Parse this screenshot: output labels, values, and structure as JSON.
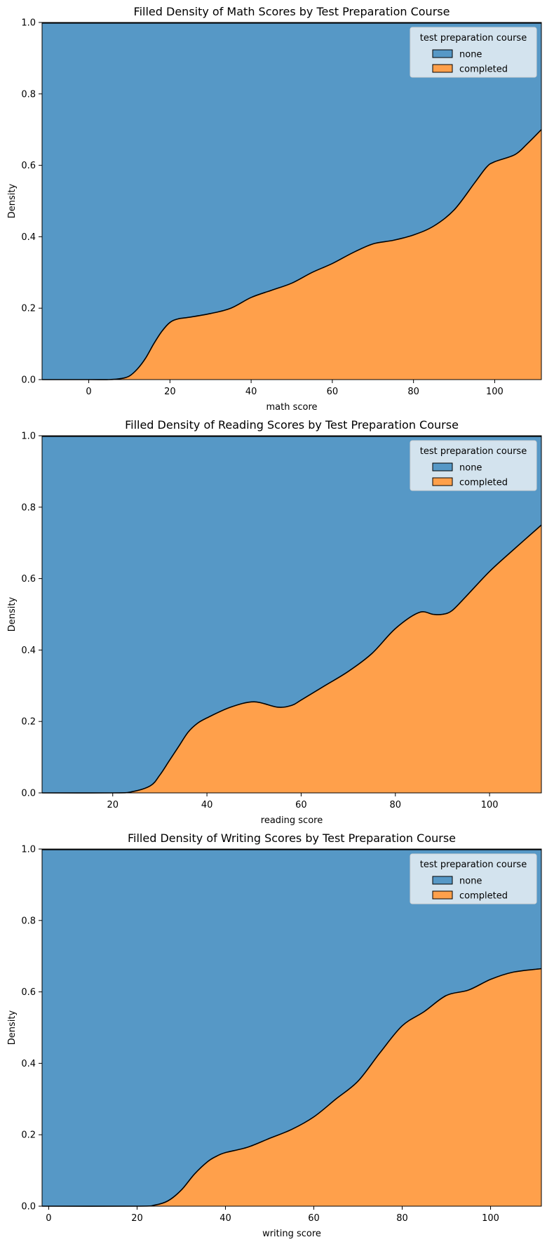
{
  "colors": {
    "none": "#5698c6",
    "completed": "#ffa04b",
    "legend_bg": "#dde9f1",
    "legend_border": "#d4d4d4"
  },
  "legend": {
    "title": "test preparation course",
    "placement": "upper right"
  },
  "chart_data": [
    {
      "type": "area",
      "stacked": "fill",
      "title": "Filled Density of Math Scores by Test Preparation Course",
      "xlabel": "math score",
      "ylabel": "Density",
      "xlim": [
        -11.5,
        111.5
      ],
      "ylim": [
        0,
        1
      ],
      "xticks": [
        0,
        20,
        40,
        60,
        80,
        100
      ],
      "yticks": [
        0.0,
        0.2,
        0.4,
        0.6,
        0.8,
        1.0
      ],
      "series": [
        {
          "name": "none",
          "role": "top"
        },
        {
          "name": "completed",
          "role": "bottom"
        }
      ],
      "x": [
        -11.5,
        0,
        5,
        8,
        10,
        12,
        14,
        16,
        18,
        20,
        22,
        25,
        30,
        35,
        40,
        45,
        50,
        55,
        60,
        65,
        70,
        75,
        80,
        85,
        90,
        95,
        98,
        100,
        105,
        108,
        111.5
      ],
      "completed_fraction": [
        0,
        0,
        0,
        0.003,
        0.01,
        0.03,
        0.06,
        0.1,
        0.135,
        0.16,
        0.17,
        0.175,
        0.185,
        0.2,
        0.23,
        0.25,
        0.27,
        0.3,
        0.325,
        0.355,
        0.38,
        0.39,
        0.405,
        0.43,
        0.475,
        0.55,
        0.595,
        0.61,
        0.63,
        0.66,
        0.7
      ]
    },
    {
      "type": "area",
      "stacked": "fill",
      "title": "Filled Density of Reading Scores by Test Preparation Course",
      "xlabel": "reading score",
      "ylabel": "Density",
      "xlim": [
        5,
        111
      ],
      "ylim": [
        0,
        1
      ],
      "xticks": [
        20,
        40,
        60,
        80,
        100
      ],
      "yticks": [
        0.0,
        0.2,
        0.4,
        0.6,
        0.8,
        1.0
      ],
      "series": [
        {
          "name": "none",
          "role": "top"
        },
        {
          "name": "completed",
          "role": "bottom"
        }
      ],
      "x": [
        5,
        20,
        24,
        28,
        30,
        32,
        34,
        36,
        38,
        40,
        45,
        50,
        55,
        58,
        60,
        65,
        70,
        75,
        80,
        85,
        88,
        90,
        92,
        95,
        100,
        105,
        111
      ],
      "completed_fraction": [
        0,
        0,
        0.003,
        0.02,
        0.05,
        0.09,
        0.13,
        0.17,
        0.195,
        0.21,
        0.24,
        0.255,
        0.24,
        0.245,
        0.26,
        0.3,
        0.34,
        0.39,
        0.46,
        0.505,
        0.5,
        0.5,
        0.51,
        0.55,
        0.62,
        0.68,
        0.75
      ]
    },
    {
      "type": "area",
      "stacked": "fill",
      "title": "Filled Density of Writing Scores by Test Preparation Course",
      "xlabel": "writing score",
      "ylabel": "Density",
      "xlim": [
        -1.5,
        111.5
      ],
      "ylim": [
        0,
        1
      ],
      "xticks": [
        0,
        20,
        40,
        60,
        80,
        100
      ],
      "yticks": [
        0.0,
        0.2,
        0.4,
        0.6,
        0.8,
        1.0
      ],
      "series": [
        {
          "name": "none",
          "role": "top"
        },
        {
          "name": "completed",
          "role": "bottom"
        }
      ],
      "x": [
        -1.5,
        20,
        24,
        27,
        30,
        33,
        36,
        38,
        40,
        45,
        50,
        55,
        60,
        65,
        70,
        75,
        80,
        85,
        90,
        95,
        100,
        105,
        111.5
      ],
      "completed_fraction": [
        0,
        0,
        0.003,
        0.015,
        0.045,
        0.09,
        0.125,
        0.14,
        0.15,
        0.165,
        0.19,
        0.215,
        0.25,
        0.3,
        0.35,
        0.43,
        0.505,
        0.545,
        0.59,
        0.605,
        0.635,
        0.655,
        0.665
      ]
    }
  ]
}
